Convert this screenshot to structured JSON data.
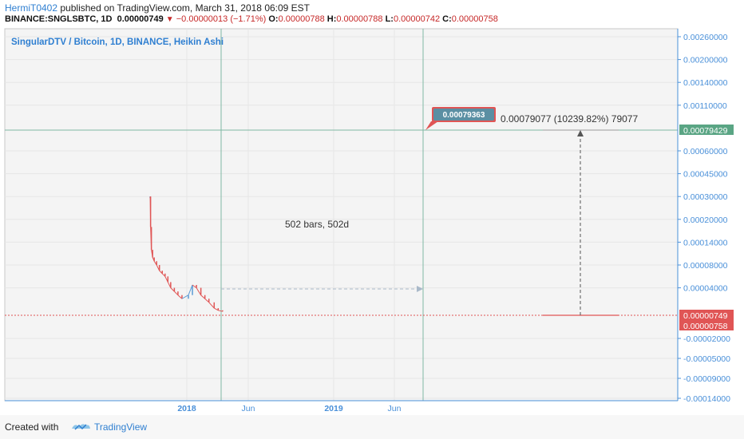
{
  "header": {
    "author": "HermiT0402",
    "published": "published on TradingView.com, March 31, 2018 06:09 EST",
    "symbol": "BINANCE:SNGLSBTC, 1D",
    "last": "0.00000749",
    "change": "−0.00000013 (−1.71%)",
    "o_label": "O:",
    "o_value": "0.00000788",
    "h_label": "H:",
    "h_value": "0.00000788",
    "l_label": "L:",
    "l_value": "0.00000742",
    "c_label": "C:",
    "c_value": "0.00000758"
  },
  "footer": {
    "created_with": "Created with",
    "brand": "TradingView"
  },
  "colors": {
    "up": "#5b9bd5",
    "down": "#e05555",
    "axis": "#4a90d9",
    "grid": "#dcdcdc",
    "green_line": "#7fb8a4",
    "red_dotted": "#e05555"
  },
  "chart_data": {
    "type": "candlestick",
    "title": "SingularDTV / Bitcoin, 1D, BINANCE, Heikin Ashi",
    "yaxis_labels": [
      "0.00260000",
      "0.00200000",
      "0.00140000",
      "0.00110000",
      "0.00079429",
      "0.00060000",
      "0.00045000",
      "0.00030000",
      "0.00020000",
      "0.00014000",
      "0.00008000",
      "0.00004000",
      "0.00000749",
      "0.00000758",
      "-0.00002000",
      "-0.00005000",
      "-0.00009000",
      "-0.00014000"
    ],
    "yaxis_values": [
      0.0026,
      0.002,
      0.0014,
      0.0011,
      0.00079429,
      0.0006,
      0.00045,
      0.0003,
      0.0002,
      0.00014,
      8e-05,
      4e-05,
      7.49e-06,
      7.58e-06,
      -2e-05,
      -5e-05,
      -9e-05,
      -0.00014
    ],
    "xaxis_labels": [
      "2018",
      "Jun",
      "2019",
      "Jun"
    ],
    "price_series": {
      "name": "SNGLSBTC",
      "x": [
        "2017-10-02",
        "2017-10-03",
        "2017-10-05",
        "2017-10-08",
        "2017-10-12",
        "2017-10-18",
        "2017-10-25",
        "2017-11-01",
        "2017-11-08",
        "2017-11-15",
        "2017-11-22",
        "2017-12-01",
        "2017-12-10",
        "2017-12-20",
        "2018-01-05",
        "2018-01-15",
        "2018-01-25",
        "2018-02-05",
        "2018-02-15",
        "2018-02-25",
        "2018-03-10",
        "2018-03-20",
        "2018-03-31"
      ],
      "y": [
        0.0003,
        0.00018,
        0.00012,
        0.0001,
        9e-05,
        8e-05,
        7e-05,
        6.5e-05,
        6e-05,
        5e-05,
        4e-05,
        3.5e-05,
        3e-05,
        2.5e-05,
        3e-05,
        4.5e-05,
        4e-05,
        3e-05,
        2.5e-05,
        2e-05,
        1.2e-05,
        9e-06,
        7.5e-06
      ]
    },
    "annotations": {
      "bars_label": "502 bars, 502d",
      "price_badge": "0.00079363",
      "measure_label": "0.00079077 (10239.82%) 79077",
      "target_price": 0.00079429,
      "current_price": 7.49e-06
    },
    "grid": true
  }
}
